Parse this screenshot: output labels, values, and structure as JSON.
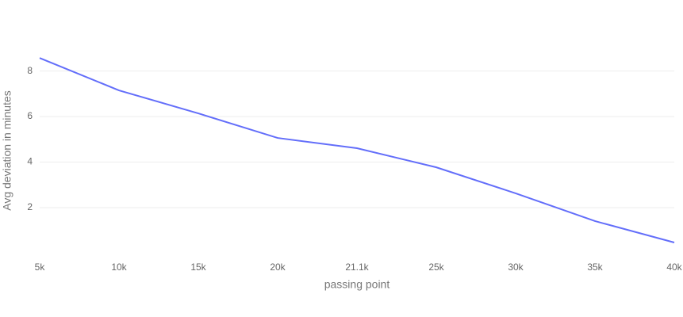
{
  "chart_data": {
    "type": "line",
    "x_label": "passing point",
    "y_label": "Avg deviation in minutes",
    "categories": [
      "5k",
      "10k",
      "15k",
      "20k",
      "21.1k",
      "25k",
      "30k",
      "35k",
      "40k"
    ],
    "series": [
      {
        "color": "#636efa",
        "values": [
          8.57,
          7.15,
          6.14,
          5.06,
          4.61,
          3.77,
          2.63,
          1.41,
          0.47
        ]
      }
    ],
    "ylim": [
      0.33,
      9.03
    ],
    "yticks": [
      2,
      4,
      6,
      8
    ],
    "grid": true
  }
}
